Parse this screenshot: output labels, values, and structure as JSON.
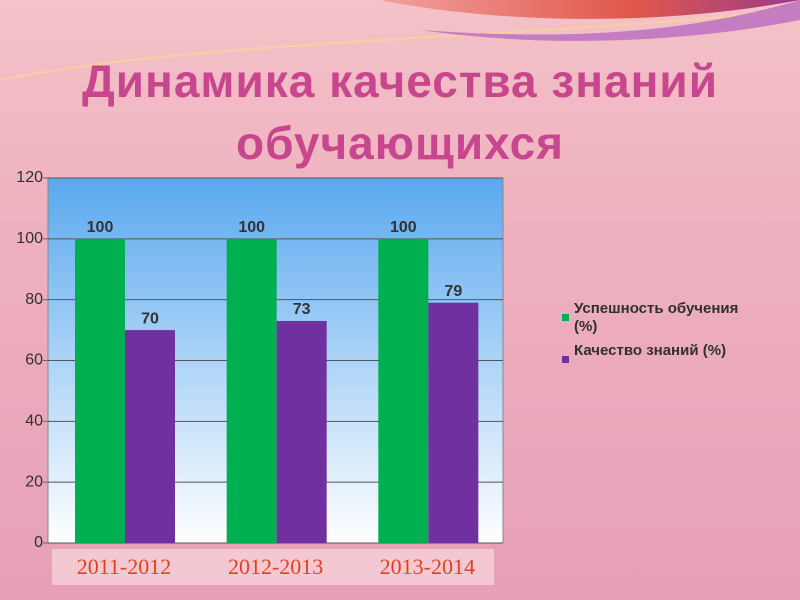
{
  "chart_data": {
    "type": "bar",
    "title": "Динамика качества знаний обучающихся",
    "categories": [
      "2011-2012",
      "2012-2013",
      "2013-2014"
    ],
    "series": [
      {
        "name": "Успешность обучения (%)",
        "color": "#00b050",
        "values": [
          100,
          100,
          100
        ]
      },
      {
        "name": "Качество знаний (%)",
        "color": "#7030a0",
        "values": [
          70,
          73,
          79
        ]
      }
    ],
    "ylim": [
      0,
      120
    ],
    "yticks": [
      0,
      20,
      40,
      60,
      80,
      100,
      120
    ],
    "grid": true,
    "legend": "right"
  }
}
